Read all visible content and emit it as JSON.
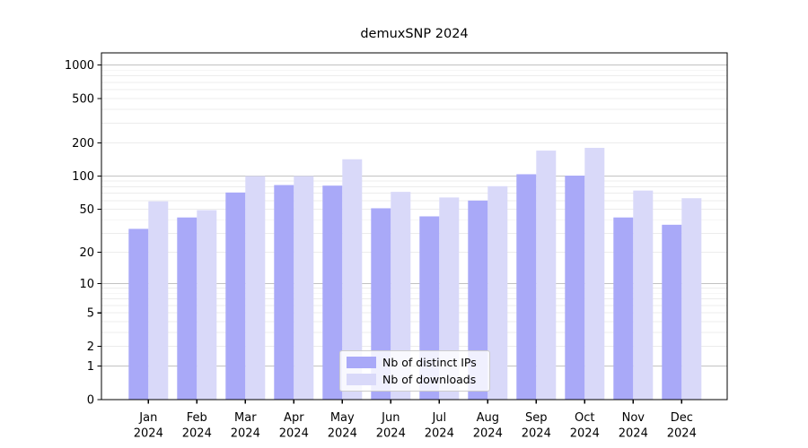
{
  "title": "demuxSNP 2024",
  "chart_data": {
    "type": "bar",
    "title": "demuxSNP 2024",
    "categories": [
      "Jan 2024",
      "Feb 2024",
      "Mar 2024",
      "Apr 2024",
      "May 2024",
      "Jun 2024",
      "Jul 2024",
      "Aug 2024",
      "Sep 2024",
      "Oct 2024",
      "Nov 2024",
      "Dec 2024"
    ],
    "series": [
      {
        "name": "Nb of distinct IPs",
        "color": "#a9a9f8",
        "values": [
          33,
          42,
          71,
          83,
          82,
          51,
          43,
          60,
          104,
          101,
          42,
          36
        ]
      },
      {
        "name": "Nb of downloads",
        "color": "#d9d9f9",
        "values": [
          59,
          49,
          100,
          100,
          142,
          72,
          64,
          81,
          170,
          180,
          74,
          63
        ]
      }
    ],
    "xlabel": "",
    "ylabel": "",
    "yscale": "log1p",
    "yticks": [
      0,
      1,
      2,
      5,
      10,
      20,
      50,
      100,
      200,
      500,
      1000
    ],
    "ylim": [
      0,
      1285
    ],
    "grid": true,
    "legend_position": "lower center"
  },
  "legend": {
    "items": [
      {
        "label": "Nb of distinct IPs",
        "color": "#a9a9f8"
      },
      {
        "label": "Nb of downloads",
        "color": "#d9d9f9"
      }
    ]
  },
  "colors": {
    "background": "#ffffff",
    "bar_ips": "#a9a9f8",
    "bar_downloads": "#d9d9f9",
    "grid_major": "#c2c2c2",
    "grid_minor": "#ececec",
    "axis_frame": "#000000",
    "text": "#000000",
    "legend_border": "#cccccc"
  }
}
